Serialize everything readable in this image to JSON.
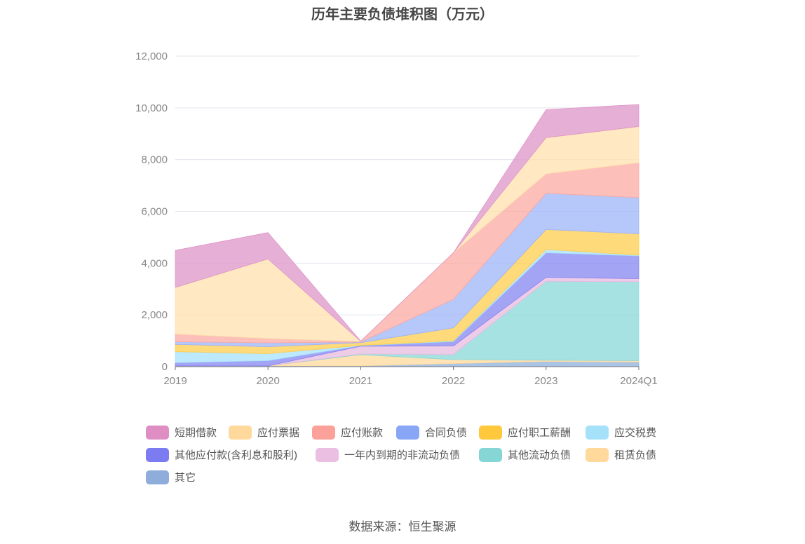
{
  "title": "历年主要负债堆积图（万元）",
  "source": "数据来源：恒生聚源",
  "chart_data": {
    "type": "area",
    "stacked": true,
    "title": "历年主要负债堆积图（万元）",
    "x": [
      "2019",
      "2020",
      "2021",
      "2022",
      "2023",
      "2024Q1"
    ],
    "y_ticks": [
      "0",
      "2,000",
      "4,000",
      "6,000",
      "8,000",
      "10,000",
      "12,000"
    ],
    "ylim": [
      0,
      12000
    ],
    "grid": true,
    "legend_position": "bottom",
    "series": [
      {
        "name": "其它",
        "color": "#8EB0DD",
        "values": [
          30,
          30,
          30,
          120,
          200,
          180
        ]
      },
      {
        "name": "租赁负债",
        "color": "#FFD99B",
        "values": [
          0,
          0,
          430,
          150,
          50,
          50
        ]
      },
      {
        "name": "其他流动负债",
        "color": "#8AD8D8",
        "values": [
          0,
          0,
          30,
          200,
          3050,
          3050
        ]
      },
      {
        "name": "一年内到期的非流动负债",
        "color": "#E7BBE0",
        "values": [
          0,
          0,
          300,
          330,
          150,
          120
        ]
      },
      {
        "name": "其他应付款(含利息和股利)",
        "color": "#8585F0",
        "values": [
          120,
          200,
          20,
          170,
          950,
          880
        ]
      },
      {
        "name": "应交税费",
        "color": "#A6E1FA",
        "values": [
          430,
          270,
          10,
          30,
          130,
          30
        ]
      },
      {
        "name": "应付职工薪酬",
        "color": "#FFCD4D",
        "values": [
          280,
          270,
          110,
          500,
          770,
          820
        ]
      },
      {
        "name": "合同负债",
        "color": "#9EB4F8",
        "values": [
          100,
          150,
          20,
          1100,
          1400,
          1400
        ]
      },
      {
        "name": "应付账款",
        "color": "#FBA9A2",
        "values": [
          300,
          170,
          20,
          1800,
          750,
          1350
        ]
      },
      {
        "name": "应付票据",
        "color": "#FFE0AD",
        "values": [
          1800,
          3070,
          10,
          0,
          1400,
          1400
        ]
      },
      {
        "name": "短期借款",
        "color": "#DE95C8",
        "values": [
          1430,
          1020,
          10,
          0,
          1080,
          850
        ]
      }
    ]
  },
  "legend": [
    {
      "label": "短期借款",
      "color": "#DE8EC2"
    },
    {
      "label": "应付票据",
      "color": "#FFD99B"
    },
    {
      "label": "应付账款",
      "color": "#FCA19A"
    },
    {
      "label": "合同负债",
      "color": "#88A6F5"
    },
    {
      "label": "应付职工薪酬",
      "color": "#FFC83D"
    },
    {
      "label": "应交税费",
      "color": "#A6E1FA"
    },
    {
      "label": "其他应付款(含利息和股利)",
      "color": "#7C7CF2"
    },
    {
      "label": "一年内到期的非流动负债",
      "color": "#EBBFE2"
    },
    {
      "label": "其他流动负债",
      "color": "#86D6D6"
    },
    {
      "label": "租赁负债",
      "color": "#FFD99B"
    },
    {
      "label": "其它",
      "color": "#8EADDA"
    }
  ]
}
